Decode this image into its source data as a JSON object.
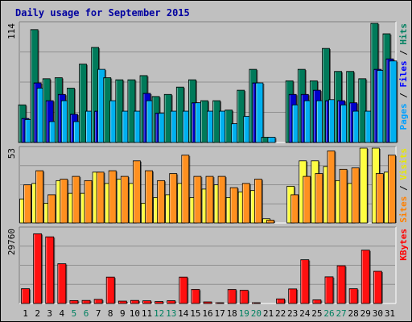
{
  "chart_data": {
    "type": "bar",
    "title": "Daily usage for September 2015",
    "days": [
      "1",
      "2",
      "3",
      "4",
      "5",
      "6",
      "7",
      "8",
      "9",
      "10",
      "11",
      "12",
      "13",
      "14",
      "15",
      "16",
      "17",
      "18",
      "19",
      "20",
      "21",
      "22",
      "23",
      "24",
      "25",
      "26",
      "27",
      "28",
      "29",
      "30",
      "31"
    ],
    "weekend_days": [
      "5",
      "6",
      "12",
      "13",
      "19",
      "20",
      "26",
      "27"
    ],
    "panels": [
      {
        "id": "hits-files-pages",
        "max_label": "114",
        "ymax": 114,
        "right_label": [
          {
            "text": "Pages",
            "color": "#00a0ff"
          },
          {
            "text": " / ",
            "color": "#000000"
          },
          {
            "text": "Files",
            "color": "#0000ff"
          },
          {
            "text": " / ",
            "color": "#000000"
          },
          {
            "text": "Hits",
            "color": "#008060"
          }
        ],
        "series": [
          {
            "name": "Hits",
            "color": "#007a5a",
            "values": [
              36,
              108,
              61,
              62,
              52,
              75,
              91,
              62,
              60,
              60,
              64,
              44,
              46,
              53,
              60,
              40,
              40,
              31,
              50,
              70,
              5,
              0,
              59,
              70,
              59,
              90,
              68,
              68,
              61,
              114,
              104
            ]
          },
          {
            "name": "Files",
            "color": "#0000cc",
            "values": [
              23,
              57,
              40,
              46,
              27,
              0,
              30,
              0,
              0,
              0,
              47,
              28,
              0,
              0,
              38,
              0,
              0,
              0,
              0,
              57,
              0,
              0,
              46,
              46,
              50,
              40,
              40,
              38,
              0,
              70,
              80
            ]
          },
          {
            "name": "Pages",
            "color": "#00b0f0",
            "values": [
              22,
              52,
              20,
              40,
              20,
              30,
              70,
              40,
              30,
              30,
              40,
              28,
              30,
              30,
              38,
              30,
              30,
              18,
              25,
              57,
              5,
              0,
              36,
              40,
              40,
              41,
              36,
              30,
              30,
              69,
              78
            ]
          }
        ]
      },
      {
        "id": "visits-sites",
        "max_label": "53",
        "ymax": 53,
        "right_label": [
          {
            "text": "Sites",
            "color": "#ff8000"
          },
          {
            "text": " / ",
            "color": "#000000"
          },
          {
            "text": "Visits",
            "color": "#e8e800"
          }
        ],
        "series": [
          {
            "name": "Visits",
            "color": "#ffff40",
            "values": [
              17,
              28,
              14,
              30,
              21,
              21,
              36,
              28,
              31,
              28,
              14,
              18,
              20,
              28,
              18,
              24,
              27,
              18,
              22,
              23,
              3,
              0,
              26,
              44,
              44,
              40,
              30,
              28,
              53,
              53,
              36
            ]
          },
          {
            "name": "Sites",
            "color": "#ff9020",
            "values": [
              27,
              37,
              20,
              31,
              33,
              30,
              36,
              37,
              33,
              44,
              37,
              30,
              35,
              48,
              33,
              33,
              33,
              25,
              28,
              31,
              2,
              0,
              20,
              33,
              35,
              51,
              38,
              39,
              0,
              35,
              48
            ]
          }
        ]
      },
      {
        "id": "kbytes",
        "max_label": "29760",
        "ymax": 29760,
        "right_label": [
          {
            "text": "KBytes",
            "color": "#ff0000"
          }
        ],
        "series": [
          {
            "name": "KBytes",
            "color": "#ff1010",
            "values": [
              5880,
              27700,
              26500,
              15800,
              1160,
              1220,
              1640,
              10500,
              950,
              1220,
              1080,
              780,
              1110,
              10500,
              5600,
              640,
              80,
              5580,
              5250,
              120,
              0,
              1830,
              5800,
              17400,
              1450,
              10600,
              15000,
              5880,
              21200,
              12800,
              0
            ]
          }
        ]
      }
    ]
  }
}
